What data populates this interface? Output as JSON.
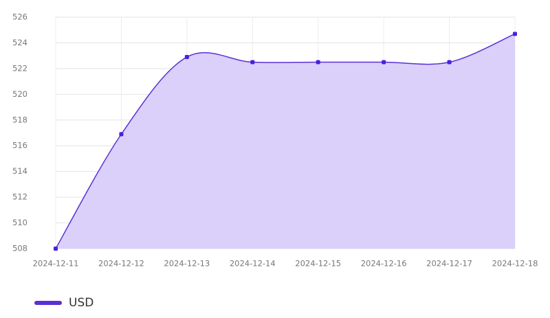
{
  "chart_data": {
    "type": "area",
    "x": [
      "2024-12-11",
      "2024-12-12",
      "2024-12-13",
      "2024-12-14",
      "2024-12-15",
      "2024-12-16",
      "2024-12-17",
      "2024-12-18"
    ],
    "series": [
      {
        "name": "USD",
        "color": "#5a2fd8",
        "fill": "#d9cefa",
        "values": [
          508,
          516.9,
          522.9,
          522.5,
          522.5,
          522.5,
          522.5,
          524.7
        ]
      }
    ],
    "ylim": [
      508,
      526
    ],
    "yticks": [
      508,
      510,
      512,
      514,
      516,
      518,
      520,
      522,
      524,
      526
    ],
    "grid": true,
    "legend": "bottom-left"
  }
}
